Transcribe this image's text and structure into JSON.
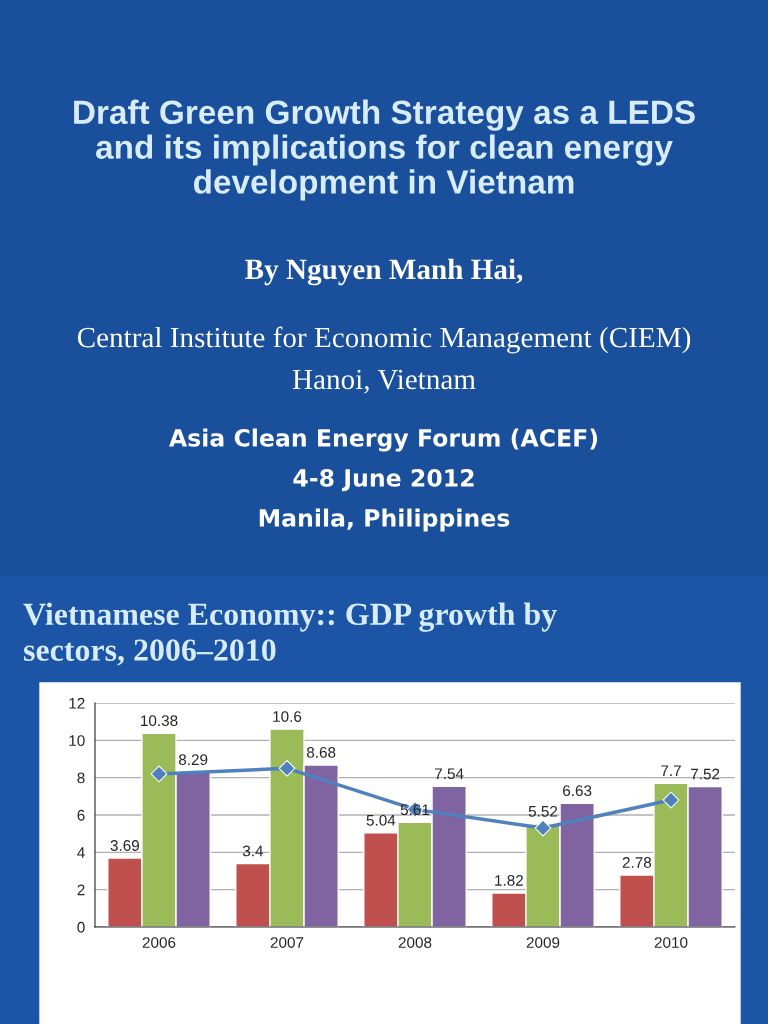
{
  "chart_data": {
    "type": "bar",
    "title": "Vietnamese Economy:: GDP growth by\nsectors, 2006–2010",
    "annotations": [
      "Draft Green Growth Strategy as a LEDS\nand its implications for clean energy\ndevelopment in Vietnam",
      "By Nguyen Manh Hai,",
      "Central Institute for Economic Management (CIEM)",
      "Hanoi, Vietnam",
      "Asia Clean Energy Forum (ACEF)",
      "4-8 June 2012",
      "Manila, Philippines"
    ],
    "categories": [
      "2006",
      "2007",
      "2008",
      "2009",
      "2010"
    ],
    "series": [
      {
        "color": "#c0504d",
        "values": [
          3.69,
          3.4,
          5.04,
          1.82,
          2.78
        ],
        "value_labels": [
          "3.69",
          "3.4",
          "5.04",
          "1.82",
          "2.78"
        ]
      },
      {
        "color": "#9bbb59",
        "values": [
          10.38,
          10.6,
          5.61,
          5.52,
          7.7
        ],
        "value_labels": [
          "10.38",
          "10.6",
          "5.61",
          "5.52",
          "7.7"
        ]
      },
      {
        "color": "#8064a2",
        "values": [
          8.29,
          8.68,
          7.54,
          6.63,
          7.52
        ],
        "value_labels": [
          "8.29",
          "8.68",
          "7.54",
          "6.63",
          "7.52"
        ]
      },
      {
        "type": "line",
        "color": "#4f81bd",
        "marker": "diamond",
        "values": [
          8.2,
          8.5,
          6.3,
          5.3,
          6.8
        ]
      }
    ],
    "ylim": [
      0,
      12
    ],
    "yticks": [
      0,
      2,
      4,
      6,
      8,
      10,
      12
    ],
    "grid": "y",
    "legend": false
  }
}
